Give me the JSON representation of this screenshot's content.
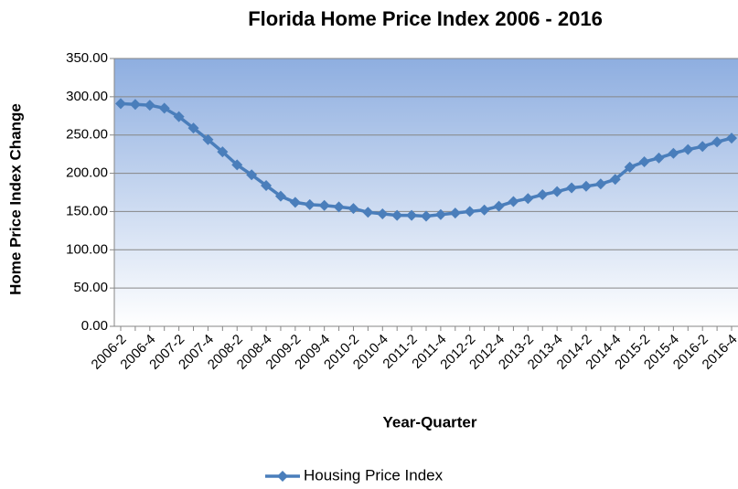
{
  "chart_data": {
    "type": "line",
    "title": "Florida Home Price Index 2006 - 2016",
    "xlabel": "Year-Quarter",
    "ylabel": "Home Price Index Change",
    "categories": [
      "2006-2",
      null,
      "2006-4",
      null,
      "2007-2",
      null,
      "2007-4",
      null,
      "2008-2",
      null,
      "2008-4",
      null,
      "2009-2",
      null,
      "2009-4",
      null,
      "2010-2",
      null,
      "2010-4",
      null,
      "2011-2",
      null,
      "2011-4",
      null,
      "2012-2",
      null,
      "2012-4",
      null,
      "2013-2",
      null,
      "2013-4",
      null,
      "2014-2",
      null,
      "2014-4",
      null,
      "2015-2",
      null,
      "2015-4",
      null,
      "2016-2",
      null,
      "2016-4"
    ],
    "series": [
      {
        "name": "Housing Price Index",
        "color": "#4a7ebb",
        "values": [
          291,
          290,
          289,
          285,
          274,
          259,
          244,
          228,
          211,
          198,
          184,
          170,
          162,
          159,
          158,
          156,
          154,
          149,
          147,
          145,
          145,
          144,
          146,
          148,
          150,
          152,
          157,
          163,
          167,
          172,
          176,
          181,
          183,
          186,
          192,
          208,
          215,
          220,
          226,
          231,
          235,
          241,
          246
        ]
      }
    ],
    "ylim": [
      0,
      350
    ],
    "yticks": [
      {
        "value": 0,
        "label": "0.00"
      },
      {
        "value": 50,
        "label": "50.00"
      },
      {
        "value": 100,
        "label": "100.00"
      },
      {
        "value": 150,
        "label": "150.00"
      },
      {
        "value": 200,
        "label": "200.00"
      },
      {
        "value": 250,
        "label": "250.00"
      },
      {
        "value": 300,
        "label": "300.00"
      },
      {
        "value": 350,
        "label": "350.00"
      }
    ],
    "grid": true,
    "legend": "bottom"
  }
}
